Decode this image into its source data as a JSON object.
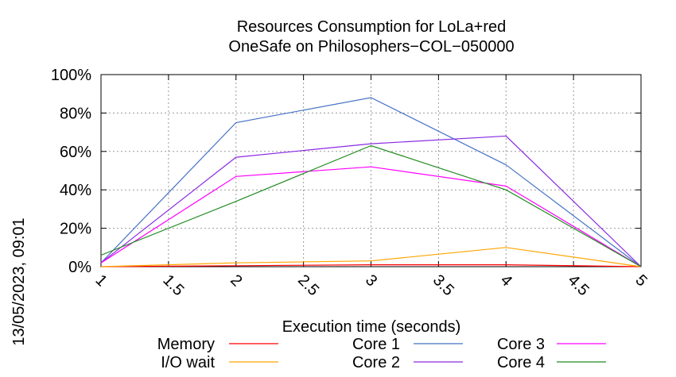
{
  "chart_data": {
    "type": "line",
    "title": [
      "Resources Consumption for LoLa+red",
      "OneSafe on Philosophers−COL−050000"
    ],
    "xlabel": "Execution time (seconds)",
    "ylabel": "",
    "side_label": "13/05/2023, 09:01",
    "xlim": [
      1,
      5
    ],
    "ylim": [
      0,
      100
    ],
    "x_ticks": [
      {
        "value": 1,
        "label": "1"
      },
      {
        "value": 1.5,
        "label": "1.5"
      },
      {
        "value": 2,
        "label": "2"
      },
      {
        "value": 2.5,
        "label": "2.5"
      },
      {
        "value": 3,
        "label": "3"
      },
      {
        "value": 3.5,
        "label": "3.5"
      },
      {
        "value": 4,
        "label": "4"
      },
      {
        "value": 4.5,
        "label": "4.5"
      },
      {
        "value": 5,
        "label": "5"
      }
    ],
    "y_ticks": [
      {
        "value": 0,
        "label": "0%"
      },
      {
        "value": 20,
        "label": "20%"
      },
      {
        "value": 40,
        "label": "40%"
      },
      {
        "value": 60,
        "label": "60%"
      },
      {
        "value": 80,
        "label": "80%"
      },
      {
        "value": 100,
        "label": "100%"
      }
    ],
    "grid": true,
    "legend_position": "bottom",
    "x": [
      1,
      2,
      3,
      4,
      5
    ],
    "series": [
      {
        "name": "Memory",
        "color": "#ff0000",
        "values": [
          0,
          0.5,
          1,
          1,
          0
        ]
      },
      {
        "name": "I/O wait",
        "color": "#ffa500",
        "values": [
          0,
          2,
          3,
          10,
          0
        ]
      },
      {
        "name": "Core 1",
        "color": "#4472c4",
        "values": [
          2,
          75,
          88,
          53,
          0
        ]
      },
      {
        "name": "Core 2",
        "color": "#8a2be2",
        "values": [
          2,
          57,
          64,
          68,
          0
        ]
      },
      {
        "name": "Core 3",
        "color": "#ff00ff",
        "values": [
          2,
          47,
          52,
          42,
          0
        ]
      },
      {
        "name": "Core 4",
        "color": "#228b22",
        "values": [
          6,
          34,
          63,
          40,
          0
        ]
      }
    ]
  }
}
